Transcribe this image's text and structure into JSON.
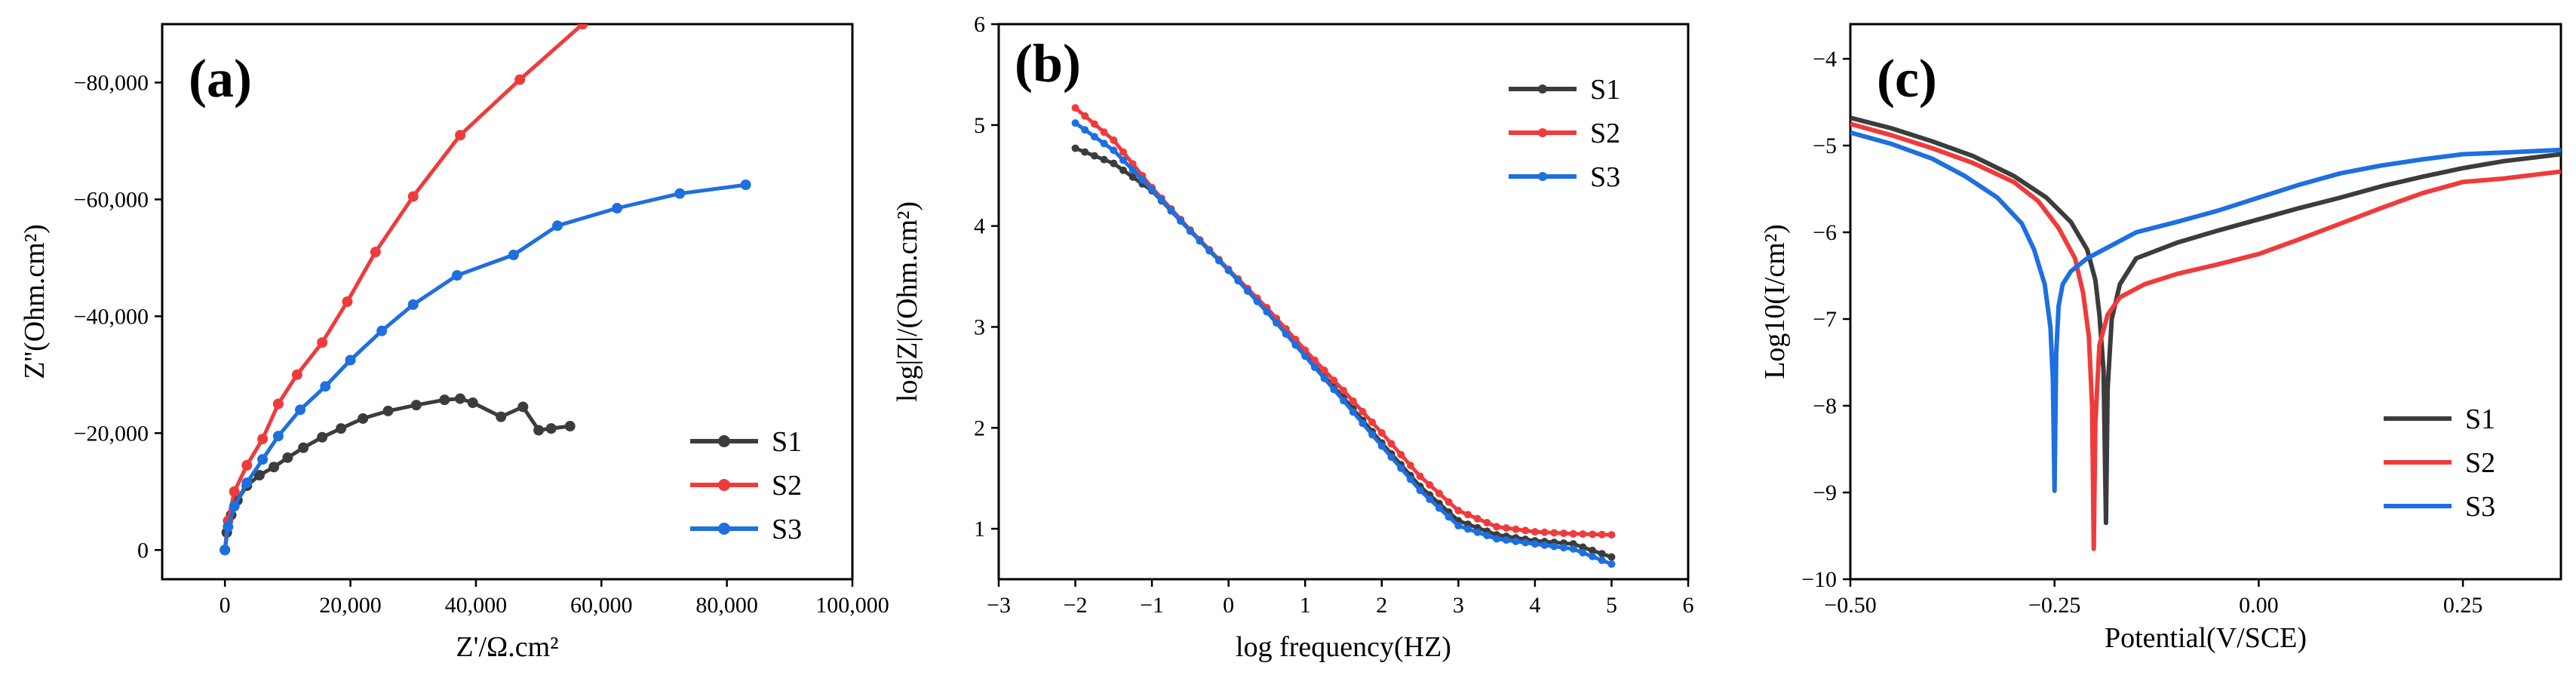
{
  "colors": {
    "S1": "#3c3c3c",
    "S2": "#ef3b3b",
    "S3": "#1e6fe0"
  },
  "chart_data": [
    {
      "id": "a",
      "type": "scatter",
      "panel_label": "(a)",
      "xlabel": "Z'/Ω.cm²",
      "ylabel": "Z''(Ohm.cm²)",
      "xlim": [
        -10000,
        100000
      ],
      "ylim": [
        5000,
        -90000
      ],
      "xticks": [
        0,
        20000,
        40000,
        60000,
        80000,
        100000
      ],
      "xtick_labels": [
        "0",
        "20,000",
        "40,000",
        "60,000",
        "80,000",
        "100,000"
      ],
      "yticks": [
        0,
        -20000,
        -40000,
        -60000,
        -80000
      ],
      "ytick_labels": [
        "0",
        "−20,000",
        "−40,000",
        "−60,000",
        "−80,000"
      ],
      "legend_position": "bottom-right",
      "series": [
        {
          "name": "S1",
          "markers": true,
          "x": [
            0,
            300,
            1000,
            2000,
            3500,
            5500,
            7800,
            10000,
            12500,
            15500,
            18500,
            22000,
            26000,
            30500,
            35000,
            37500,
            39500,
            44000,
            47500,
            50000,
            52000,
            55000
          ],
          "y": [
            0,
            -3000,
            -6000,
            -8500,
            -11000,
            -12800,
            -14200,
            -15800,
            -17500,
            -19300,
            -20800,
            -22500,
            -23800,
            -24800,
            -25700,
            -25900,
            -25200,
            -22800,
            -24500,
            -20500,
            -20800,
            -21200
          ]
        },
        {
          "name": "S2",
          "markers": true,
          "x": [
            0,
            500,
            1500,
            3500,
            6000,
            8500,
            11500,
            15500,
            19500,
            24000,
            30000,
            37500,
            47000,
            57000
          ],
          "y": [
            0,
            -5000,
            -10000,
            -14500,
            -19000,
            -25000,
            -30000,
            -35500,
            -42500,
            -51000,
            -60500,
            -71000,
            -80500,
            -90000
          ]
        },
        {
          "name": "S3",
          "markers": true,
          "x": [
            0,
            500,
            1500,
            3500,
            6000,
            8500,
            12000,
            16000,
            20000,
            25000,
            30000,
            37000,
            46000,
            53000,
            62500,
            72500,
            83000
          ],
          "y": [
            0,
            -4000,
            -7500,
            -11500,
            -15500,
            -19500,
            -24000,
            -28000,
            -32500,
            -37500,
            -42000,
            -47000,
            -50500,
            -55500,
            -58500,
            -61000,
            -62500
          ]
        }
      ]
    },
    {
      "id": "b",
      "type": "line",
      "panel_label": "(b)",
      "xlabel": "log  frequency(HZ)",
      "ylabel": "log|Z|/(Ohm.cm²)",
      "xlim": [
        -3,
        6
      ],
      "ylim": [
        0.5,
        6
      ],
      "xticks": [
        -3,
        -2,
        -1,
        0,
        1,
        2,
        3,
        4,
        5,
        6
      ],
      "xtick_labels": [
        "−3",
        "−2",
        "−1",
        "0",
        "1",
        "2",
        "3",
        "4",
        "5",
        "6"
      ],
      "yticks": [
        1,
        2,
        3,
        4,
        5,
        6
      ],
      "ytick_labels": [
        "1",
        "2",
        "3",
        "4",
        "5",
        "6"
      ],
      "legend_position": "top-right",
      "series": [
        {
          "name": "S1",
          "markers": true,
          "x": [
            -2.0,
            -1.5,
            -1.0,
            -0.5,
            0.0,
            0.5,
            1.0,
            1.5,
            2.0,
            2.5,
            3.0,
            3.5,
            4.0,
            4.5,
            5.0
          ],
          "y": [
            4.77,
            4.62,
            4.35,
            3.95,
            3.56,
            3.16,
            2.72,
            2.3,
            1.85,
            1.42,
            1.08,
            0.94,
            0.88,
            0.85,
            0.72
          ]
        },
        {
          "name": "S2",
          "markers": true,
          "x": [
            -2.0,
            -1.5,
            -1.0,
            -0.5,
            0.0,
            0.5,
            1.0,
            1.5,
            2.0,
            2.5,
            3.0,
            3.5,
            4.0,
            4.5,
            5.0
          ],
          "y": [
            5.17,
            4.85,
            4.38,
            3.96,
            3.57,
            3.19,
            2.77,
            2.37,
            1.95,
            1.52,
            1.18,
            1.02,
            0.97,
            0.95,
            0.94
          ]
        },
        {
          "name": "S3",
          "markers": true,
          "x": [
            -2.0,
            -1.5,
            -1.0,
            -0.5,
            0.0,
            0.5,
            1.0,
            1.5,
            2.0,
            2.5,
            3.0,
            3.5,
            4.0,
            4.5,
            5.0
          ],
          "y": [
            5.02,
            4.75,
            4.36,
            3.95,
            3.56,
            3.15,
            2.71,
            2.27,
            1.82,
            1.38,
            1.03,
            0.9,
            0.85,
            0.8,
            0.65
          ]
        }
      ]
    },
    {
      "id": "c",
      "type": "line",
      "panel_label": "(c)",
      "xlabel": "Potential(V/SCE)",
      "ylabel": "Log10(I/cm²)",
      "xlim": [
        -0.5,
        0.37
      ],
      "ylim": [
        -10,
        -3.6
      ],
      "xticks": [
        -0.5,
        -0.25,
        0.0,
        0.25
      ],
      "xtick_labels": [
        "−0.50",
        "−0.25",
        "0.00",
        "0.25"
      ],
      "yticks": [
        -10,
        -9,
        -8,
        -7,
        -6,
        -5,
        -4
      ],
      "ytick_labels": [
        "−10",
        "−9",
        "−8",
        "−7",
        "−6",
        "−5",
        "−4"
      ],
      "legend_position": "bottom-right",
      "series": [
        {
          "name": "S1",
          "markers": false,
          "x": [
            -0.5,
            -0.45,
            -0.4,
            -0.35,
            -0.3,
            -0.26,
            -0.23,
            -0.21,
            -0.2,
            -0.195,
            -0.19,
            -0.187,
            -0.185,
            -0.18,
            -0.17,
            -0.15,
            -0.1,
            -0.05,
            0.0,
            0.05,
            0.1,
            0.15,
            0.2,
            0.25,
            0.3,
            0.37
          ],
          "y": [
            -4.68,
            -4.8,
            -4.95,
            -5.12,
            -5.35,
            -5.6,
            -5.88,
            -6.2,
            -6.55,
            -6.95,
            -7.6,
            -9.35,
            -7.8,
            -7.0,
            -6.6,
            -6.3,
            -6.12,
            -5.98,
            -5.85,
            -5.72,
            -5.6,
            -5.47,
            -5.36,
            -5.26,
            -5.18,
            -5.1
          ]
        },
        {
          "name": "S2",
          "markers": false,
          "x": [
            -0.5,
            -0.45,
            -0.4,
            -0.35,
            -0.3,
            -0.27,
            -0.245,
            -0.225,
            -0.215,
            -0.208,
            -0.204,
            -0.202,
            -0.2,
            -0.195,
            -0.185,
            -0.17,
            -0.14,
            -0.1,
            -0.05,
            0.0,
            0.05,
            0.1,
            0.15,
            0.2,
            0.25,
            0.3,
            0.37
          ],
          "y": [
            -4.75,
            -4.88,
            -5.03,
            -5.2,
            -5.42,
            -5.64,
            -5.95,
            -6.3,
            -6.7,
            -7.2,
            -8.0,
            -9.65,
            -8.2,
            -7.3,
            -6.95,
            -6.75,
            -6.6,
            -6.48,
            -6.37,
            -6.25,
            -6.08,
            -5.9,
            -5.72,
            -5.55,
            -5.42,
            -5.38,
            -5.3
          ]
        },
        {
          "name": "S3",
          "markers": false,
          "x": [
            -0.5,
            -0.45,
            -0.4,
            -0.36,
            -0.32,
            -0.29,
            -0.275,
            -0.262,
            -0.255,
            -0.252,
            -0.25,
            -0.248,
            -0.245,
            -0.24,
            -0.23,
            -0.21,
            -0.18,
            -0.15,
            -0.1,
            -0.05,
            0.0,
            0.05,
            0.1,
            0.15,
            0.2,
            0.25,
            0.3,
            0.37
          ],
          "y": [
            -4.85,
            -4.98,
            -5.15,
            -5.35,
            -5.6,
            -5.9,
            -6.2,
            -6.6,
            -7.1,
            -7.7,
            -8.98,
            -7.4,
            -6.85,
            -6.6,
            -6.45,
            -6.3,
            -6.15,
            -6.0,
            -5.88,
            -5.75,
            -5.6,
            -5.45,
            -5.32,
            -5.23,
            -5.16,
            -5.1,
            -5.08,
            -5.05
          ]
        }
      ]
    }
  ]
}
